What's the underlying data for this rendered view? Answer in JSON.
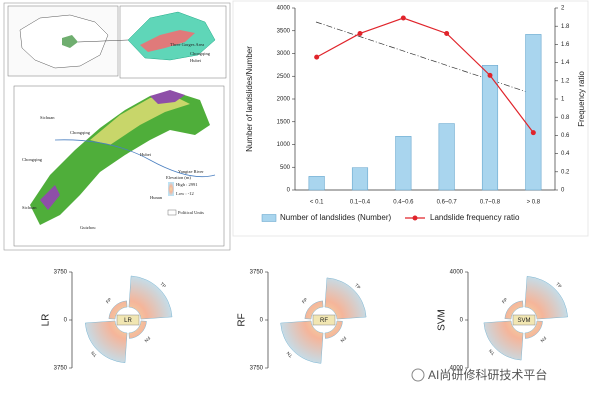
{
  "map": {
    "labels": [
      "Sichuan",
      "Chongqing",
      "Hubei",
      "Hunan",
      "Guizhou",
      "Yangtze River",
      "Chongqing",
      "Sichuan",
      "Three Gorges Area",
      "Elevation (m)",
      "High : 2991",
      "Low : -12",
      "Political Units",
      "Chongqing",
      "Hubei"
    ]
  },
  "watermark": "AI尚研修科研技术平台",
  "chart_data": [
    {
      "type": "combo",
      "categories": [
        "< 0.1",
        "0.1~0.4",
        "0.4~0.6",
        "0.6~0.7",
        "0.7~0.8",
        "> 0.8"
      ],
      "series": [
        {
          "name": "Number of landslides (Number)",
          "color": "#a9d5ee",
          "values": [
            300,
            490,
            1180,
            1460,
            2740,
            3420
          ]
        },
        {
          "name": "Landslide frequency ratio",
          "color": "#e0242b",
          "axis": "y2",
          "values": [
            1.46,
            1.72,
            1.89,
            1.72,
            1.26,
            0.63
          ]
        }
      ],
      "ylabel": "Number of landslides/Number",
      "y2label": "Frequency ratio",
      "ylim": [
        0,
        4000
      ],
      "yticks": [
        0,
        500,
        1000,
        1500,
        2000,
        2500,
        3000,
        3500,
        4000
      ],
      "y2lim": [
        0,
        2
      ],
      "y2ticks": [
        0,
        0.2,
        0.4,
        0.6,
        0.8,
        1,
        1.2,
        1.4,
        1.6,
        1.8,
        2
      ]
    },
    {
      "type": "fourfold",
      "ylabel": "LR",
      "center_label": "LR",
      "categories": [
        "TP",
        "FP",
        "TN",
        "FN"
      ],
      "values": [
        3450,
        1500,
        3350,
        1450
      ],
      "ylim": [
        -3750,
        3750
      ],
      "yticks": [
        {
          "value": -3750,
          "label": "3750"
        },
        0,
        3750
      ]
    },
    {
      "type": "fourfold",
      "ylabel": "RF",
      "center_label": "RF",
      "categories": [
        "TP",
        "FP",
        "TN",
        "FN"
      ],
      "values": [
        3300,
        1500,
        3400,
        1450
      ],
      "ylim": [
        -3750,
        3750
      ],
      "yticks": [
        {
          "value": -3750,
          "label": "3750"
        },
        0,
        3750
      ]
    },
    {
      "type": "fourfold",
      "ylabel": "SVM",
      "center_label": "SVM",
      "categories": [
        "TP",
        "FP",
        "TN",
        "FN"
      ],
      "values": [
        3650,
        1600,
        3350,
        1550
      ],
      "ylim": [
        -4000,
        4000
      ],
      "yticks": [
        {
          "value": -4000,
          "label": "4000"
        },
        0,
        4000
      ]
    }
  ]
}
